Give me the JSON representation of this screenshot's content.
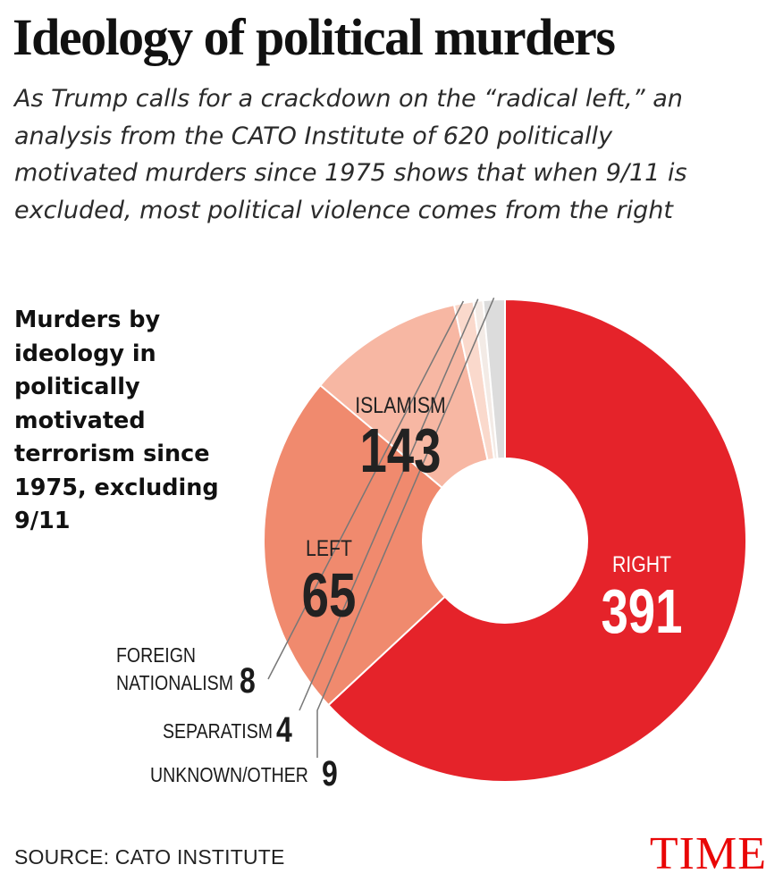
{
  "header": {
    "title": "Ideology of political murders",
    "subtitle": "As Trump calls for a crackdown on the “radical left,” an analysis from the CATO Institute of 620 politically motivated murders since 1975 shows that when 9/11 is excluded, most political violence comes from the right"
  },
  "footer": {
    "source": "SOURCE: CATO INSTITUTE",
    "logo": "TIME"
  },
  "chart_data": {
    "type": "pie",
    "title": "Murders by ideology in politically motivated terrorism since 1975, excluding 9/11",
    "total": 620,
    "slices": [
      {
        "label": "RIGHT",
        "value": 391,
        "color": "#e5232a"
      },
      {
        "label": "ISLAMISM",
        "value": 143,
        "color": "#f08a6e"
      },
      {
        "label": "LEFT",
        "value": 65,
        "color": "#f7b7a3"
      },
      {
        "label": "FOREIGN NATIONALISM",
        "value": 8,
        "color": "#fad9cc"
      },
      {
        "label": "SEPARATISM",
        "value": 4,
        "color": "#f3ebe6"
      },
      {
        "label": "UNKNOWN/OTHER",
        "value": 9,
        "color": "#dcdcdc"
      }
    ]
  }
}
